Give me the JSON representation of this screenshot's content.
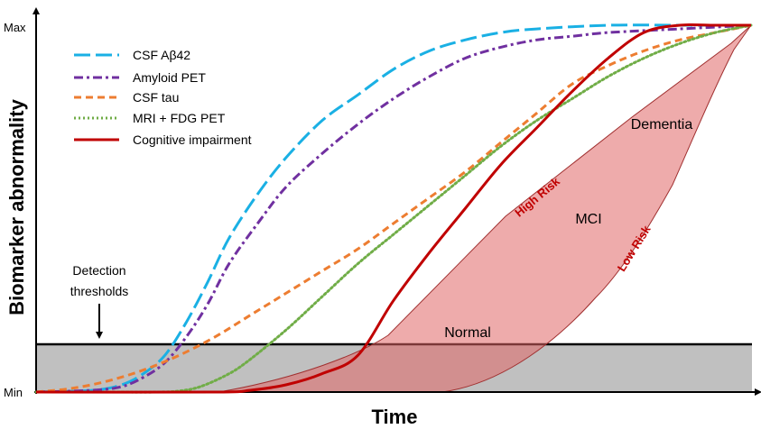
{
  "chart_data": {
    "type": "line",
    "title": "",
    "xlabel": "Time",
    "ylabel": "Biomarker abnormality",
    "xlim": [
      0,
      100
    ],
    "ylim": [
      0,
      100
    ],
    "y_tick_labels": [
      "Min",
      "Max"
    ],
    "grid": false,
    "legend": {
      "placement": "top-left"
    },
    "series": [
      {
        "name": "CSF Aβ42",
        "color": "#1ab0e4",
        "style": "long-dash",
        "x": [
          0,
          8,
          12,
          15,
          18,
          21,
          24,
          27,
          31,
          35,
          40,
          45,
          50,
          55,
          60,
          65,
          70,
          80,
          90,
          100
        ],
        "y": [
          0,
          0.5,
          2,
          5,
          10,
          19,
          30,
          42,
          54,
          64,
          74,
          81,
          88,
          93,
          96,
          98,
          99,
          100,
          100,
          100
        ]
      },
      {
        "name": "Amyloid PET",
        "color": "#7030a0",
        "style": "dash-dot",
        "x": [
          0,
          8,
          12,
          15,
          18,
          21,
          24,
          27,
          31,
          35,
          40,
          45,
          50,
          55,
          60,
          65,
          70,
          75,
          80,
          90,
          100
        ],
        "y": [
          0,
          0.5,
          1.5,
          4,
          8,
          15,
          24,
          35,
          46,
          56,
          65,
          73,
          80,
          86,
          91,
          94,
          96,
          97,
          98,
          99,
          100
        ]
      },
      {
        "name": "CSF tau",
        "color": "#ed7d31",
        "style": "dash",
        "x": [
          0,
          5,
          10,
          15,
          20,
          25,
          30,
          35,
          40,
          45,
          50,
          55,
          60,
          65,
          70,
          75,
          80,
          85,
          90,
          95,
          100
        ],
        "y": [
          0,
          1,
          3,
          6,
          10,
          15,
          21,
          27,
          33,
          39,
          46,
          53,
          60,
          68,
          76,
          84,
          89,
          93,
          96,
          98,
          100
        ]
      },
      {
        "name": "MRI + FDG PET",
        "color": "#70ad47",
        "style": "dotted",
        "x": [
          0,
          10,
          17,
          20,
          23,
          27,
          30,
          35,
          40,
          45,
          50,
          55,
          60,
          65,
          70,
          75,
          80,
          85,
          90,
          95,
          100
        ],
        "y": [
          0,
          0,
          0,
          0.3,
          1.5,
          5,
          9,
          17,
          26,
          35,
          43,
          51,
          59,
          67,
          74,
          80,
          86,
          91,
          95,
          98,
          100
        ]
      },
      {
        "name": "Cognitive impairment",
        "color": "#c00000",
        "style": "solid",
        "x": [
          0,
          25,
          30,
          35,
          40,
          45,
          50,
          55,
          60,
          65,
          70,
          75,
          80,
          85,
          90,
          95,
          100
        ],
        "y": [
          0,
          0,
          0.5,
          2,
          5,
          10,
          25,
          38,
          50,
          62,
          72,
          82,
          91,
          98,
          100,
          100,
          100
        ]
      }
    ],
    "regions": [
      {
        "label": "Normal",
        "color": "#c0c0c0",
        "y_range": [
          0,
          13
        ]
      },
      {
        "label": "MCI",
        "color": "#e8a0a0"
      },
      {
        "label": "Dementia"
      }
    ],
    "annotations": [
      {
        "text": "High Risk",
        "color": "#c00000"
      },
      {
        "text": "Low Risk",
        "color": "#c00000"
      },
      {
        "text": "Detection thresholds",
        "lines": [
          "Detection",
          "thresholds"
        ]
      }
    ]
  }
}
